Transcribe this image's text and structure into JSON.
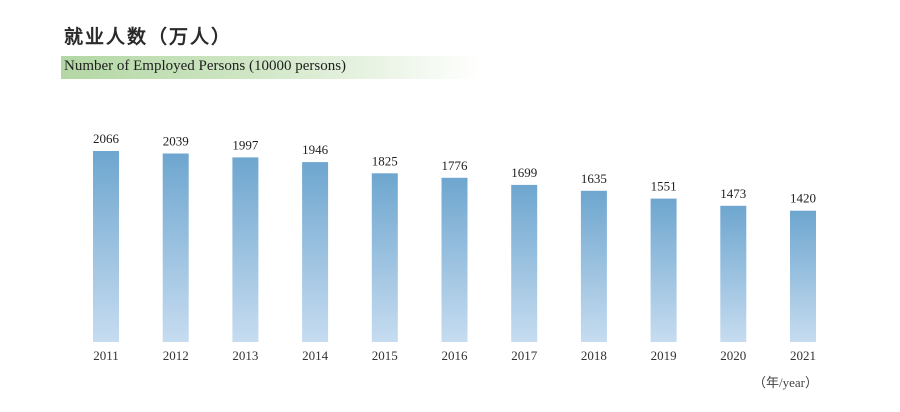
{
  "header": {
    "title_cn": "就业人数（万人）",
    "title_en": "Number of Employed Persons (10000 persons)"
  },
  "chart_data": {
    "type": "bar",
    "title": "就业人数（万人）",
    "subtitle": "Number of Employed Persons (10000 persons)",
    "categories": [
      "2011",
      "2012",
      "2013",
      "2014",
      "2015",
      "2016",
      "2017",
      "2018",
      "2019",
      "2020",
      "2021"
    ],
    "values": [
      2066,
      2039,
      1997,
      1946,
      1825,
      1776,
      1699,
      1635,
      1551,
      1473,
      1420
    ],
    "xlabel": "（年/year）",
    "ylabel": "",
    "ylim": [
      0,
      2066
    ],
    "grid": false,
    "legend": "none",
    "bar_color_top": "#6ea6cf",
    "bar_color_bottom": "#c6dcf0"
  },
  "colors": {
    "title_band": "#b3d7a4",
    "text": "#222222"
  }
}
